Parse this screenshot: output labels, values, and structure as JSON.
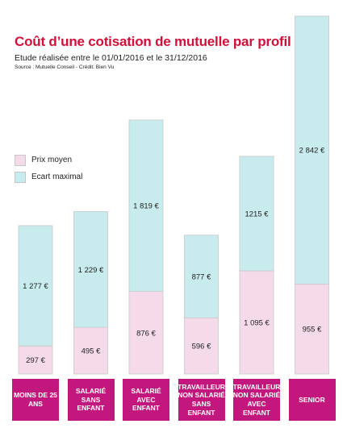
{
  "header": {
    "title": "Coût d’une cotisation de mutuelle par profil",
    "subtitle": "Etude réalisée entre le 01/01/2016 et le 31/12/2016",
    "source": "Source : Mutuelle Conseil - Crédit: Bien Vu"
  },
  "colors": {
    "prix_moyen": "#f5dbe9",
    "ecart_maximal": "#c8ebee",
    "category_box": "#c2177c",
    "title": "#d0103a"
  },
  "chart_data": {
    "type": "bar",
    "stacked": true,
    "title": "Coût d’une cotisation de mutuelle par profil",
    "legend_position": "left",
    "categories": [
      "MOINS DE 25\nANS",
      "SALARIÉ SANS\nENFANT",
      "SALARIÉ AVEC\nENFANT",
      "TRAVAILLEUR\nNON SALARIÉ\nSANS ENFANT",
      "TRAVAILLEUR\nNON SALARIÉ\nAVEC ENFANT",
      "SENIOR"
    ],
    "series": [
      {
        "name": "Prix moyen",
        "values": [
          297,
          495,
          876,
          596,
          1095,
          955
        ],
        "labels": [
          "297 €",
          "495 €",
          "876 €",
          "596 €",
          "1 095 €",
          "955 €"
        ]
      },
      {
        "name": "Ecart maximal",
        "values": [
          1277,
          1229,
          1819,
          877,
          1215,
          2842
        ],
        "labels": [
          "1 277 €",
          "1 229 €",
          "1 819 €",
          "877 €",
          "1215 €",
          "2 842 €"
        ]
      }
    ],
    "ylim": [
      0,
      3797
    ],
    "grid": false
  }
}
